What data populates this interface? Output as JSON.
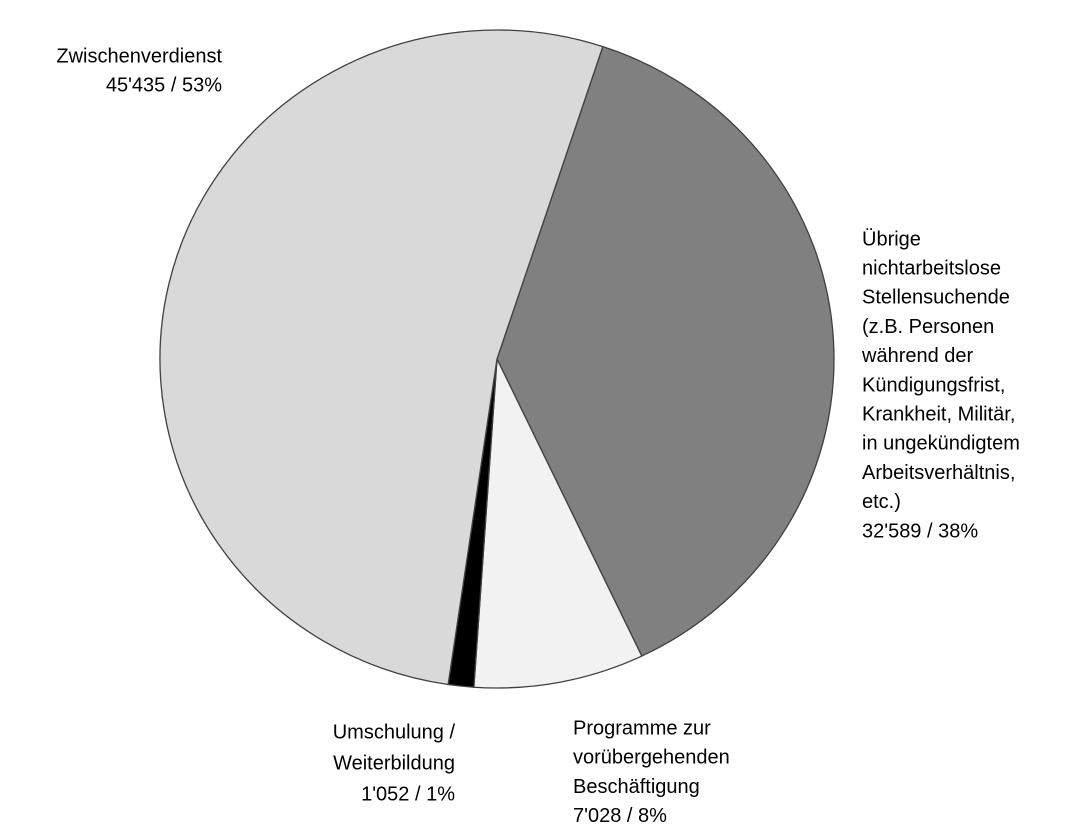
{
  "chart_data": {
    "type": "pie",
    "categories": [
      [
        "Übrige",
        "nichtarbeitslose",
        "Stellensuchende",
        "(z.B. Personen",
        "während der",
        "Kündigungsfrist,",
        "Krankheit, Militär,",
        "in ungekündigtem",
        "Arbeitsverhältnis,",
        "etc.)"
      ],
      [
        "Programme zur",
        "vorübergehenden",
        "Beschäftigung"
      ],
      [
        "Umschulung /",
        "Weiterbildung"
      ],
      [
        "Zwischenverdienst"
      ]
    ],
    "values": [
      32589,
      7028,
      1052,
      45435
    ],
    "value_labels": [
      "32'589 / 38%",
      "7'028 / 8%",
      "1'052 / 1%",
      "45'435 / 53%"
    ],
    "colors": [
      "#808080",
      "#f2f2f2",
      "#000000",
      "#d9d9d9"
    ]
  }
}
